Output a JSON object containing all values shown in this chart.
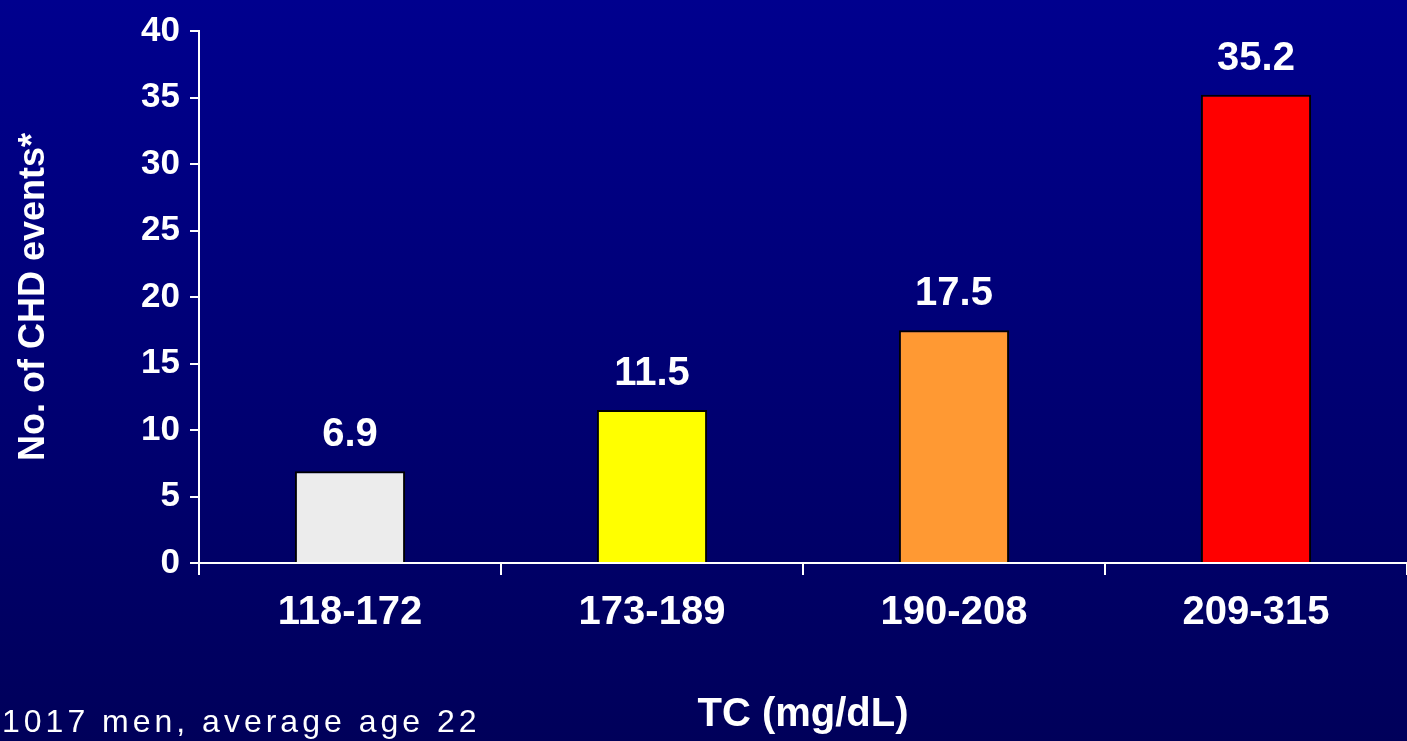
{
  "chart_data": {
    "type": "bar",
    "xlabel": "TC (mg/dL)",
    "ylabel": "No. of CHD events*",
    "categories": [
      "118-172",
      "173-189",
      "190-208",
      "209-315"
    ],
    "values": [
      6.9,
      11.5,
      17.5,
      35.2
    ],
    "colors": [
      "#ececec",
      "#ffff00",
      "#ff9933",
      "#ff0000"
    ],
    "ylim": [
      0,
      40
    ],
    "yticks": [
      0,
      5,
      10,
      15,
      20,
      25,
      30,
      35,
      40
    ],
    "data_labels": true,
    "annotations": [
      "1017 men, average age 22"
    ]
  }
}
